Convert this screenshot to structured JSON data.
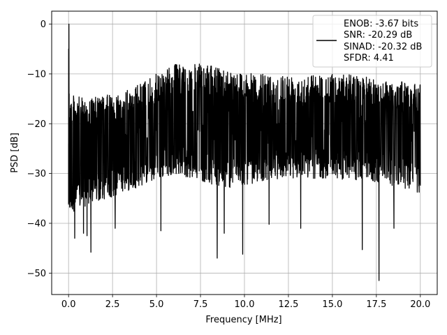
{
  "chart_data": {
    "type": "line",
    "title": "",
    "xlabel": "Frequency [MHz]",
    "ylabel": "PSD [dB]",
    "xlim": [
      -0.96,
      20.96
    ],
    "ylim": [
      -54.3,
      2.6
    ],
    "grid": true,
    "xticks": [
      0.0,
      2.5,
      5.0,
      7.5,
      10.0,
      12.5,
      15.0,
      17.5,
      20.0
    ],
    "xtick_labels": [
      "0.0",
      "2.5",
      "5.0",
      "7.5",
      "10.0",
      "12.5",
      "15.0",
      "17.5",
      "20.0"
    ],
    "yticks": [
      0,
      -10,
      -20,
      -30,
      -40,
      -50
    ],
    "ytick_labels": [
      "0",
      "−10",
      "−20",
      "−30",
      "−40",
      "−50"
    ],
    "legend": {
      "placement": "top-right",
      "lines": [
        "ENOB: -3.67 bits",
        "SNR: -20.29 dB",
        "SINAD: -20.32 dB",
        "SFDR: 4.41"
      ]
    },
    "series": [
      {
        "color": "#000000",
        "x_range": [
          0,
          20
        ],
        "n_points": 2048,
        "peak": {
          "x": 0.02,
          "y": 0.0
        },
        "noise_floor_mean_db": -20,
        "envelope_top_db": [
          [
            0.0,
            -14
          ],
          [
            1.0,
            -15
          ],
          [
            2.5,
            -14
          ],
          [
            3.5,
            -13
          ],
          [
            5.0,
            -10
          ],
          [
            6.0,
            -8
          ],
          [
            7.5,
            -8
          ],
          [
            9.0,
            -9
          ],
          [
            10.5,
            -10
          ],
          [
            12.5,
            -10
          ],
          [
            14.0,
            -10
          ],
          [
            16.0,
            -10
          ],
          [
            17.5,
            -11
          ],
          [
            20.0,
            -12
          ]
        ],
        "envelope_bottom_db": [
          [
            0.0,
            -38
          ],
          [
            1.5,
            -36
          ],
          [
            3.0,
            -34
          ],
          [
            6.0,
            -30
          ],
          [
            9.0,
            -33
          ],
          [
            12.0,
            -31
          ],
          [
            15.0,
            -31
          ],
          [
            18.0,
            -32
          ],
          [
            20.0,
            -34
          ]
        ],
        "notable_dips": [
          {
            "x": 0.35,
            "y": -43.0
          },
          {
            "x": 0.85,
            "y": -42.0
          },
          {
            "x": 1.05,
            "y": -42.5
          },
          {
            "x": 1.27,
            "y": -45.8
          },
          {
            "x": 2.65,
            "y": -41.0
          },
          {
            "x": 5.25,
            "y": -41.5
          },
          {
            "x": 8.45,
            "y": -47.0
          },
          {
            "x": 8.85,
            "y": -42.0
          },
          {
            "x": 9.9,
            "y": -46.2
          },
          {
            "x": 11.4,
            "y": -40.2
          },
          {
            "x": 13.2,
            "y": -41.0
          },
          {
            "x": 16.7,
            "y": -45.3
          },
          {
            "x": 17.65,
            "y": -51.5
          },
          {
            "x": 18.5,
            "y": -41.0
          }
        ]
      }
    ]
  }
}
